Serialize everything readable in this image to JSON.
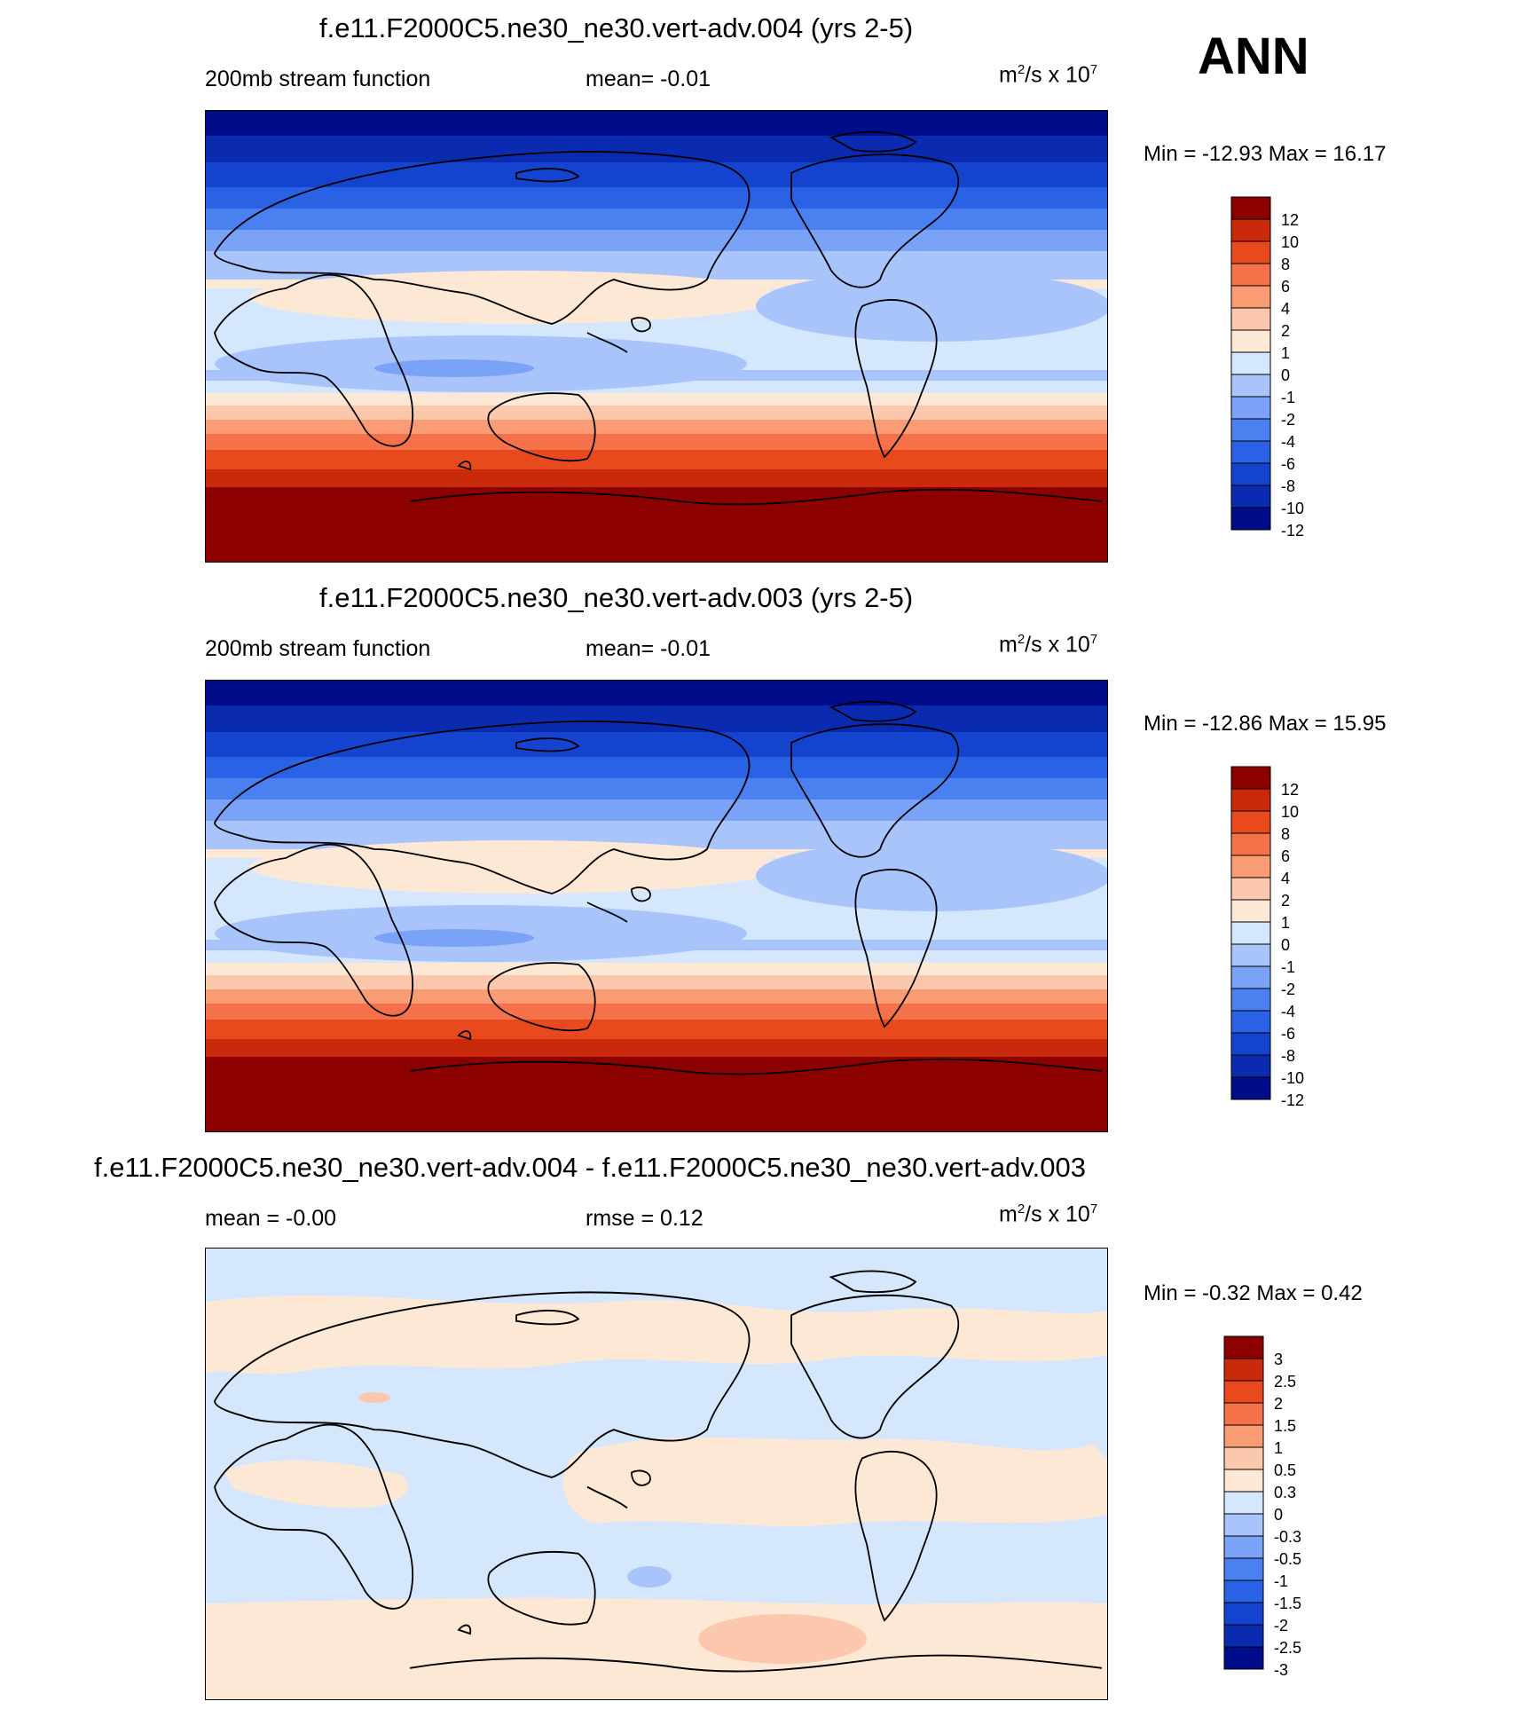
{
  "season": "ANN",
  "units_text": {
    "prefix": "m",
    "exp1": "2",
    "mid": "/s x 10",
    "exp2": "7"
  },
  "colors": {
    "base_scale": [
      "#000c8a",
      "#0a2ab0",
      "#1443d0",
      "#2a62e6",
      "#4a80f0",
      "#7aa2f7",
      "#a9c4fa",
      "#d5e7fd",
      "#fde8d6",
      "#fcc8ad",
      "#fa9c73",
      "#f5714a",
      "#e84a1e",
      "#c92a0c",
      "#8c0000"
    ],
    "diff_scale": [
      "#000c8a",
      "#0a2ab0",
      "#1443d0",
      "#2a62e6",
      "#4a80f0",
      "#7aa2f7",
      "#a9c4fa",
      "#d5e7fd",
      "#fde8d6",
      "#fcc8ad",
      "#fa9c73",
      "#f5714a",
      "#e84a1e",
      "#c92a0c",
      "#8c0000"
    ]
  },
  "panels": [
    {
      "title": "f.e11.F2000C5.ne30_ne30.vert-adv.004 (yrs 2-5)",
      "left_label": "200mb stream function",
      "center_label": "mean=  -0.01",
      "minmax": "Min = -12.93 Max =  16.17"
    },
    {
      "title": "f.e11.F2000C5.ne30_ne30.vert-adv.003 (yrs 2-5)",
      "left_label": "200mb stream function",
      "center_label": "mean=  -0.01",
      "minmax": "Min = -12.86 Max =  15.95"
    },
    {
      "title": "f.e11.F2000C5.ne30_ne30.vert-adv.004 - f.e11.F2000C5.ne30_ne30.vert-adv.003",
      "left_label": "mean =  -0.00",
      "center_label": "rmse =   0.12",
      "minmax": "Min =  -0.32 Max =   0.42"
    }
  ],
  "chart_data": [
    {
      "type": "heatmap",
      "title": "f.e11.F2000C5.ne30_ne30.vert-adv.004 (yrs 2-5)",
      "variable": "200mb stream function",
      "lat_band_values": [
        -12,
        -10,
        -8,
        -6,
        -4,
        -2,
        -1,
        1,
        0,
        -1,
        0,
        1,
        2,
        4,
        6,
        8,
        10,
        12
      ],
      "colorbar_levels": [
        "12",
        "10",
        "8",
        "6",
        "4",
        "2",
        "1",
        "0",
        "-1",
        "-2",
        "-4",
        "-6",
        "-8",
        "-10",
        "-12"
      ]
    },
    {
      "type": "heatmap",
      "title": "f.e11.F2000C5.ne30_ne30.vert-adv.003 (yrs 2-5)",
      "variable": "200mb stream function",
      "lat_band_values": [
        -12,
        -10,
        -8,
        -6,
        -4,
        -2,
        -1,
        1,
        0,
        -1,
        0,
        1,
        2,
        4,
        6,
        8,
        10,
        12
      ],
      "colorbar_levels": [
        "12",
        "10",
        "8",
        "6",
        "4",
        "2",
        "1",
        "0",
        "-1",
        "-2",
        "-4",
        "-6",
        "-8",
        "-10",
        "-12"
      ]
    },
    {
      "type": "heatmap",
      "title": "f.e11.F2000C5.ne30_ne30.vert-adv.004 - f.e11.F2000C5.ne30_ne30.vert-adv.003",
      "variable": "difference",
      "colorbar_levels": [
        "3",
        "2.5",
        "2",
        "1.5",
        "1",
        "0.5",
        "0.3",
        "0",
        "-0.3",
        "-0.5",
        "-1",
        "-1.5",
        "-2",
        "-2.5",
        "-3"
      ]
    }
  ]
}
